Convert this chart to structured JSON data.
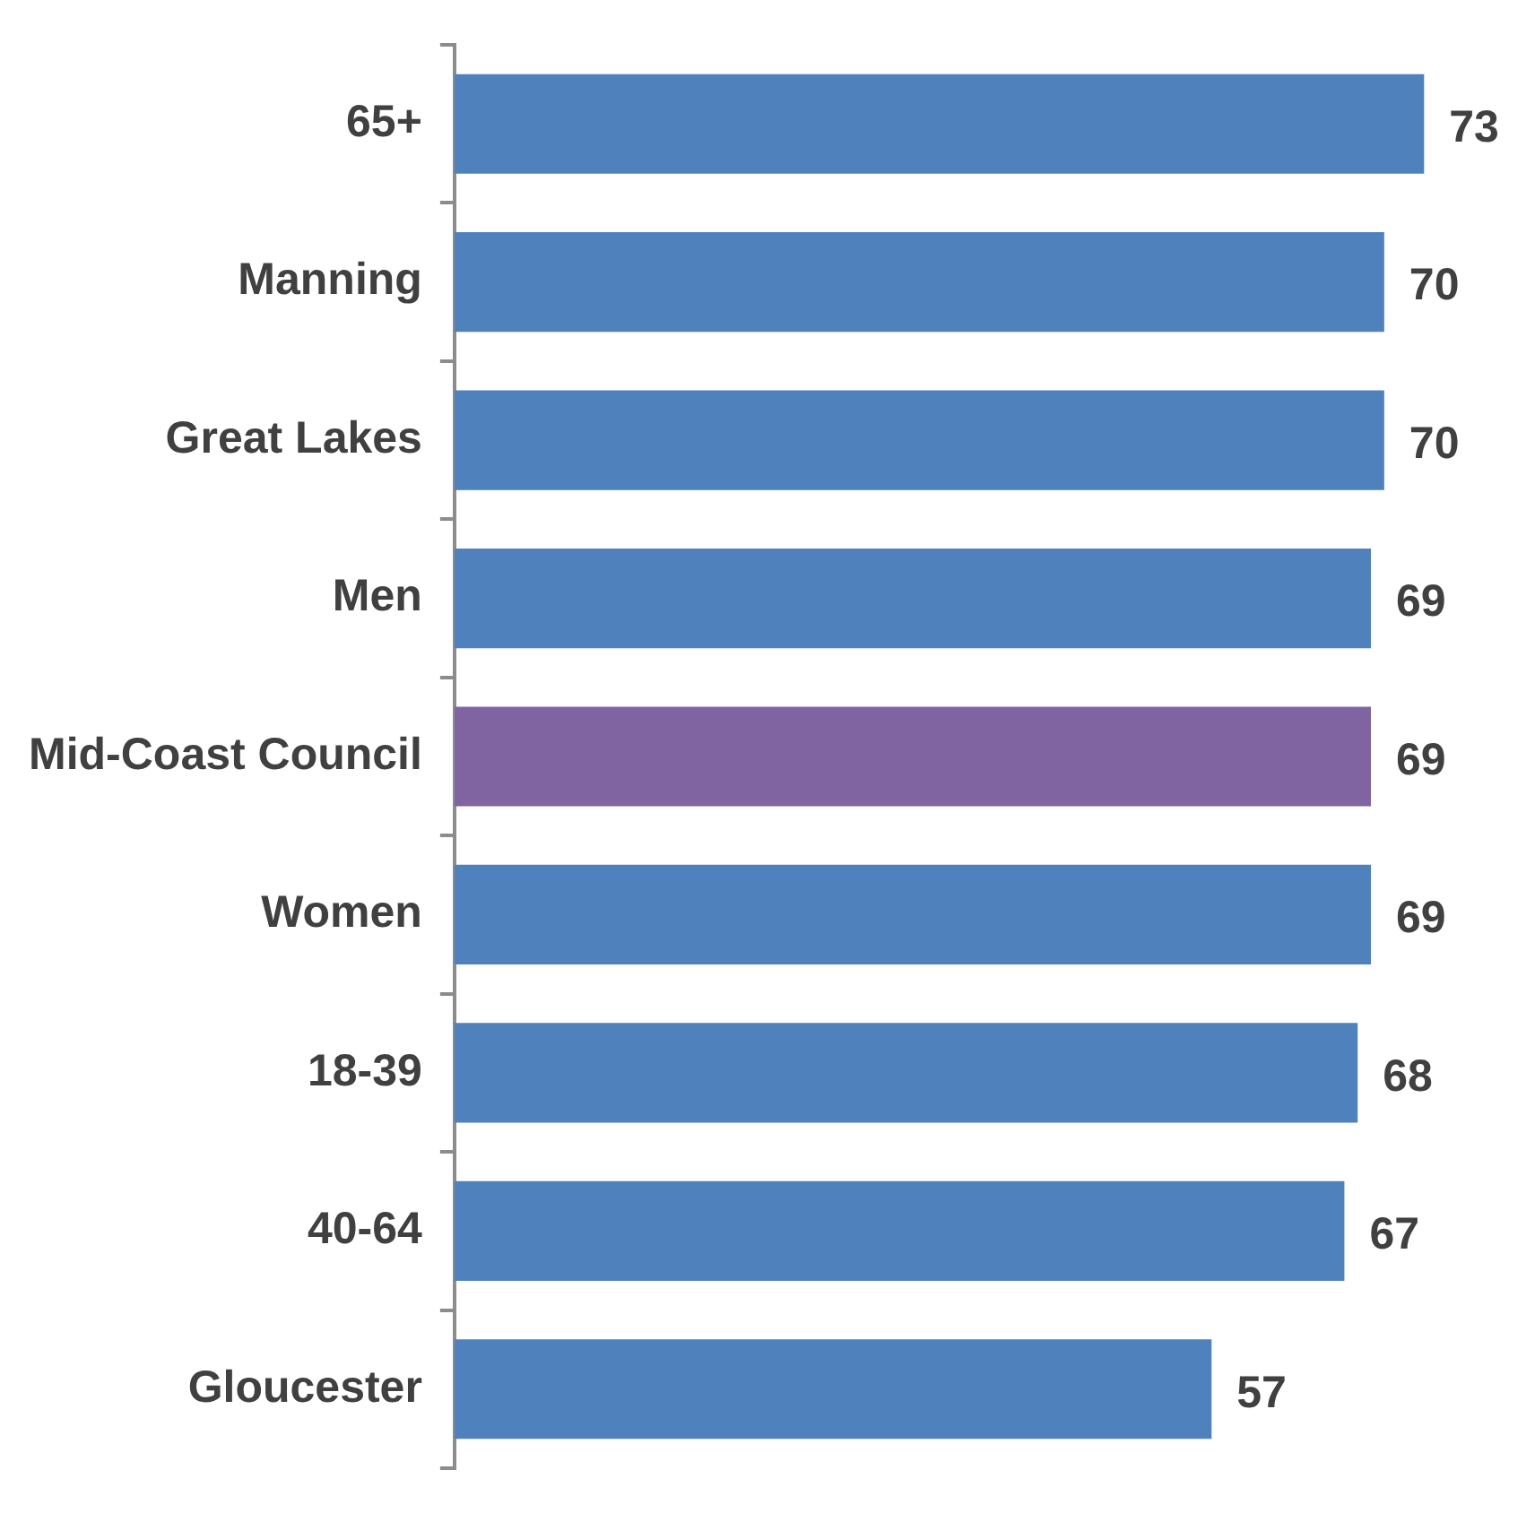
{
  "chart_data": {
    "type": "bar",
    "orientation": "horizontal",
    "categories": [
      "65+",
      "Manning",
      "Great Lakes",
      "Men",
      "Mid-Coast Council",
      "Women",
      "18-39",
      "40-64",
      "Gloucester"
    ],
    "values": [
      73,
      70,
      70,
      69,
      69,
      69,
      68,
      67,
      57
    ],
    "colors": [
      "#4f81bd",
      "#4f81bd",
      "#4f81bd",
      "#4f81bd",
      "#8064a2",
      "#4f81bd",
      "#4f81bd",
      "#4f81bd",
      "#4f81bd"
    ],
    "data_labels": true,
    "legend": false
  }
}
